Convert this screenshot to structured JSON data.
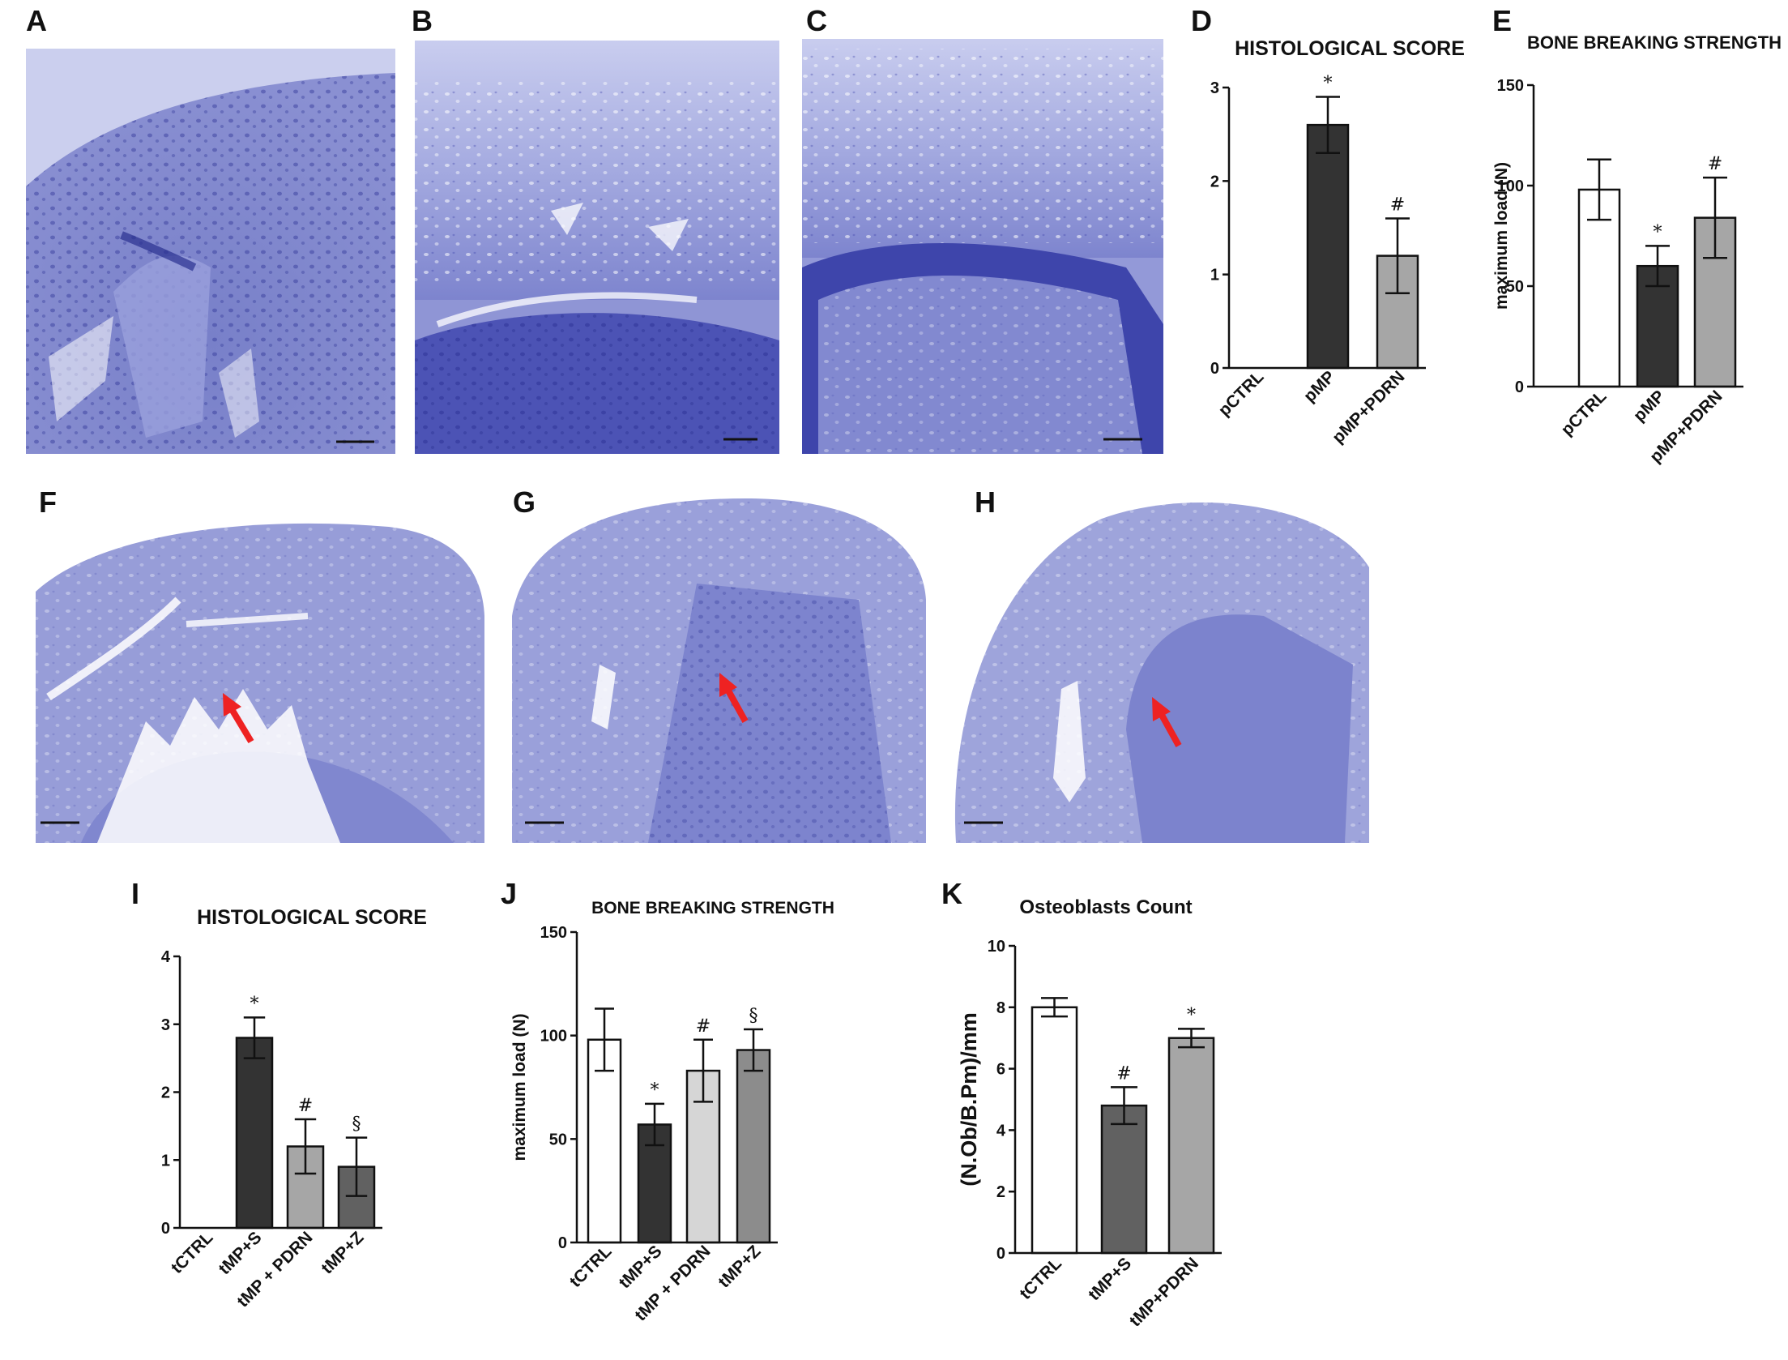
{
  "panels": {
    "A": "A",
    "B": "B",
    "C": "C",
    "D": "D",
    "E": "E",
    "F": "F",
    "G": "G",
    "H": "H",
    "I": "I",
    "J": "J",
    "K": "K"
  },
  "colors": {
    "tissue_light": "#b8bde6",
    "tissue_mid": "#7f86cf",
    "tissue_dark": "#3d43a8",
    "arrow": "#ee2222",
    "bar_white": "#ffffff",
    "bar_dark": "#333333",
    "bar_gray": "#a6a6a6",
    "bar_light": "#d6d6d6",
    "bar_midgray": "#8c8c8c",
    "bar_darkgray": "#616161"
  },
  "chart_data": [
    {
      "id": "D",
      "type": "bar",
      "title": "HISTOLOGICAL SCORE",
      "ylabel": "",
      "categories": [
        "pCTRL",
        "pMP",
        "pMP+PDRN"
      ],
      "values": [
        0,
        2.6,
        1.2
      ],
      "errors": [
        0,
        0.3,
        0.4
      ],
      "sig": [
        "",
        "*",
        "#"
      ],
      "colors": [
        "#ffffff",
        "#333333",
        "#a6a6a6"
      ],
      "ylim": [
        0,
        3
      ],
      "yticks": [
        0,
        1,
        2,
        3
      ],
      "grid": false,
      "legend": "none"
    },
    {
      "id": "E",
      "type": "bar",
      "title": "BONE BREAKING STRENGTH",
      "ylabel": "maximum load (N)",
      "categories": [
        "pCTRL",
        "pMP",
        "pMP+PDRN"
      ],
      "values": [
        98,
        60,
        84
      ],
      "errors": [
        15,
        10,
        20
      ],
      "sig": [
        "",
        "*",
        "#"
      ],
      "colors": [
        "#ffffff",
        "#333333",
        "#a6a6a6"
      ],
      "ylim": [
        0,
        150
      ],
      "yticks": [
        0,
        50,
        100,
        150
      ],
      "grid": false,
      "legend": "none"
    },
    {
      "id": "I",
      "type": "bar",
      "title": "HISTOLOGICAL SCORE",
      "ylabel": "",
      "categories": [
        "tCTRL",
        "tMP+S",
        "tMP + PDRN",
        "tMP+Z"
      ],
      "values": [
        0,
        2.8,
        1.2,
        0.9
      ],
      "errors": [
        0,
        0.3,
        0.4,
        0.43
      ],
      "sig": [
        "",
        "*",
        "#",
        "§"
      ],
      "colors": [
        "#ffffff",
        "#333333",
        "#a6a6a6",
        "#616161"
      ],
      "ylim": [
        0,
        4
      ],
      "yticks": [
        0,
        1,
        2,
        3,
        4
      ],
      "grid": false,
      "legend": "none"
    },
    {
      "id": "J",
      "type": "bar",
      "title": "BONE BREAKING STRENGTH",
      "ylabel": "maximum load (N)",
      "categories": [
        "tCTRL",
        "tMP+S",
        "tMP + PDRN",
        "tMP+Z"
      ],
      "values": [
        98,
        57,
        83,
        93
      ],
      "errors": [
        15,
        10,
        15,
        10
      ],
      "sig": [
        "",
        "*",
        "#",
        "§"
      ],
      "colors": [
        "#ffffff",
        "#333333",
        "#d6d6d6",
        "#8c8c8c"
      ],
      "ylim": [
        0,
        150
      ],
      "yticks": [
        0,
        50,
        100,
        150
      ],
      "grid": false,
      "legend": "none"
    },
    {
      "id": "K",
      "type": "bar",
      "title": "Osteoblasts Count",
      "ylabel": "(N.Ob/B.Pm)/mm",
      "categories": [
        "tCTRL",
        "tMP+S",
        "tMP+PDRN"
      ],
      "values": [
        8.0,
        4.8,
        7.0
      ],
      "errors": [
        0.3,
        0.6,
        0.3
      ],
      "sig": [
        "",
        "#",
        "*"
      ],
      "colors": [
        "#ffffff",
        "#616161",
        "#a6a6a6"
      ],
      "ylim": [
        0,
        10
      ],
      "yticks": [
        0,
        2,
        4,
        6,
        8,
        10
      ],
      "grid": false,
      "legend": "none"
    }
  ]
}
